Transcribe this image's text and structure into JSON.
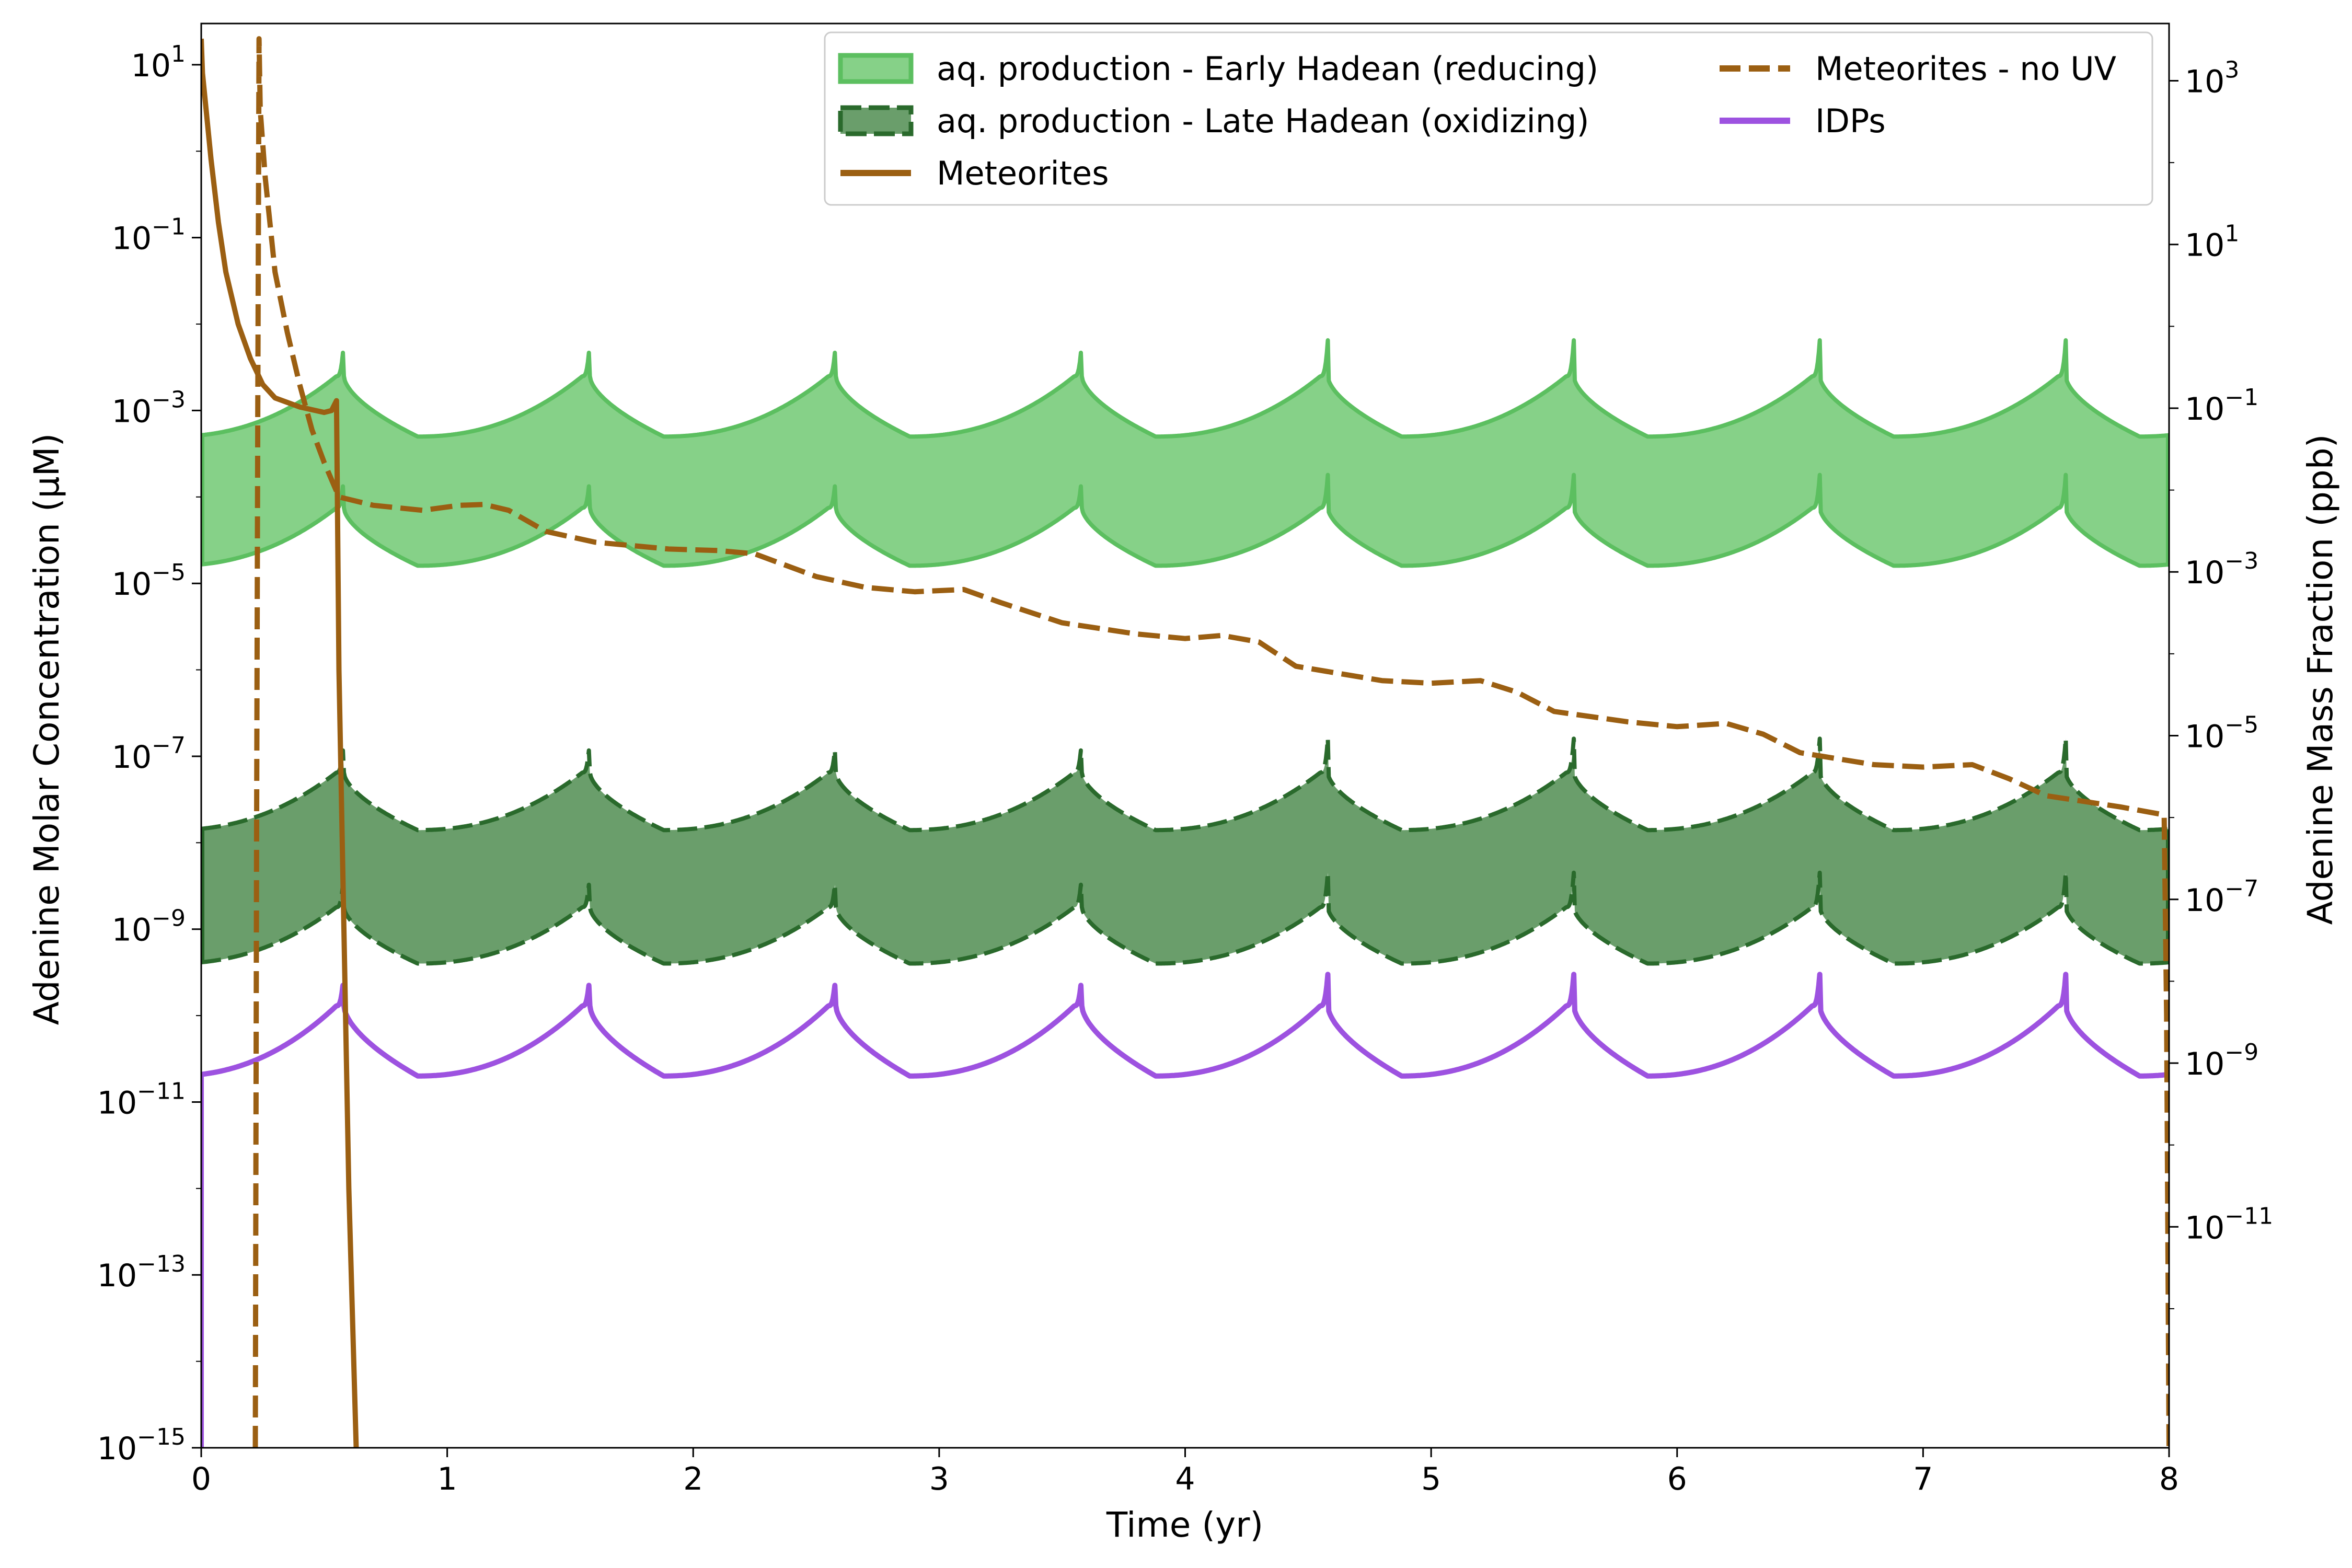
{
  "chart_data": {
    "type": "line",
    "xlabel": "Time (yr)",
    "ylabel": "Adenine Molar Concentration (μM)",
    "ylabel_right": "Adenine Mass Fraction (ppb)",
    "xlim": [
      0,
      8
    ],
    "ylim": [
      1e-15,
      30.0
    ],
    "yscale": "log",
    "ylim_right": [
      2e-14,
      5000.0
    ],
    "yscale_right": "log",
    "x_ticks": [
      "0",
      "1",
      "2",
      "3",
      "4",
      "5",
      "6",
      "7",
      "8"
    ],
    "y_ticks_left": [
      {
        "base": "10",
        "exp": "1"
      },
      {
        "base": "10",
        "exp": "−1"
      },
      {
        "base": "10",
        "exp": "−3"
      },
      {
        "base": "10",
        "exp": "−5"
      },
      {
        "base": "10",
        "exp": "−7"
      },
      {
        "base": "10",
        "exp": "−9"
      },
      {
        "base": "10",
        "exp": "−11"
      },
      {
        "base": "10",
        "exp": "−13"
      },
      {
        "base": "10",
        "exp": "−15"
      }
    ],
    "y_ticks_right": [
      {
        "base": "10",
        "exp": "3"
      },
      {
        "base": "10",
        "exp": "1"
      },
      {
        "base": "10",
        "exp": "−1"
      },
      {
        "base": "10",
        "exp": "−3"
      },
      {
        "base": "10",
        "exp": "−5"
      },
      {
        "base": "10",
        "exp": "−7"
      },
      {
        "base": "10",
        "exp": "−9"
      },
      {
        "base": "10",
        "exp": "−11"
      }
    ],
    "legend_position": "top-right",
    "series": [
      {
        "name": "aq. production - Early Hadean (reducing)",
        "kind": "band",
        "color": "#5cbf60",
        "fill": "#86d188",
        "lower": {
          "min": 1.6e-05,
          "max": 7.5e-05,
          "cusp": 0.00018
        },
        "upper": {
          "min": 0.0005,
          "max": 0.0025,
          "cusp": 0.0065
        }
      },
      {
        "name": "aq. production - Late Hadean (oxidizing)",
        "kind": "band",
        "color": "#2a6a2c",
        "fill": "#6a9e6b",
        "dashed": true,
        "lower": {
          "min": 4e-10,
          "max": 1.8e-09,
          "cusp": 4.5e-09
        },
        "upper": {
          "min": 1.4e-08,
          "max": 6.5e-08,
          "cusp": 1.6e-07
        }
      },
      {
        "name": "Meteorites",
        "kind": "line",
        "color": "#9b5f12",
        "points": [
          [
            0,
            20
          ],
          [
            0.005,
            8
          ],
          [
            0.02,
            3
          ],
          [
            0.04,
            0.8
          ],
          [
            0.07,
            0.15
          ],
          [
            0.1,
            0.04
          ],
          [
            0.15,
            0.01
          ],
          [
            0.2,
            0.004
          ],
          [
            0.25,
            0.002
          ],
          [
            0.3,
            0.0014
          ],
          [
            0.4,
            0.0011
          ],
          [
            0.5,
            0.00095
          ],
          [
            0.53,
            0.001
          ],
          [
            0.55,
            0.0013
          ],
          [
            0.56,
            1e-06
          ],
          [
            0.58,
            1e-09
          ],
          [
            0.6,
            1e-12
          ],
          [
            0.63,
            1e-15
          ]
        ]
      },
      {
        "name": "Meteorites - no UV",
        "kind": "line",
        "color": "#9b5f12",
        "dashed": true,
        "points": [
          [
            0.22,
            1e-15
          ],
          [
            0.225,
            1e-08
          ],
          [
            0.23,
            0.001
          ],
          [
            0.235,
            20
          ],
          [
            0.24,
            3
          ],
          [
            0.26,
            0.5
          ],
          [
            0.3,
            0.04
          ],
          [
            0.35,
            0.008
          ],
          [
            0.4,
            0.002
          ],
          [
            0.45,
            0.0006
          ],
          [
            0.5,
            0.00025
          ],
          [
            0.56,
            0.0001
          ],
          [
            0.7,
            8e-05
          ],
          [
            0.9,
            7e-05
          ],
          [
            1.05,
            8e-05
          ],
          [
            1.15,
            8.2e-05
          ],
          [
            1.25,
            7e-05
          ],
          [
            1.4,
            4e-05
          ],
          [
            1.6,
            3e-05
          ],
          [
            1.9,
            2.5e-05
          ],
          [
            2.1,
            2.4e-05
          ],
          [
            2.25,
            2.2e-05
          ],
          [
            2.5,
            1.2e-05
          ],
          [
            2.7,
            9e-06
          ],
          [
            2.9,
            8e-06
          ],
          [
            3.1,
            8.5e-06
          ],
          [
            3.25,
            6e-06
          ],
          [
            3.5,
            3.5e-06
          ],
          [
            3.8,
            2.6e-06
          ],
          [
            4.0,
            2.3e-06
          ],
          [
            4.15,
            2.5e-06
          ],
          [
            4.3,
            2.1e-06
          ],
          [
            4.45,
            1.1e-06
          ],
          [
            4.8,
            7.5e-07
          ],
          [
            5.0,
            7e-07
          ],
          [
            5.2,
            7.5e-07
          ],
          [
            5.35,
            5.5e-07
          ],
          [
            5.5,
            3.3e-07
          ],
          [
            5.8,
            2.5e-07
          ],
          [
            6.0,
            2.2e-07
          ],
          [
            6.2,
            2.4e-07
          ],
          [
            6.35,
            1.8e-07
          ],
          [
            6.5,
            1.1e-07
          ],
          [
            6.8,
            8e-08
          ],
          [
            7.0,
            7.5e-08
          ],
          [
            7.2,
            8e-08
          ],
          [
            7.35,
            5.5e-08
          ],
          [
            7.5,
            3.5e-08
          ],
          [
            7.8,
            2.6e-08
          ],
          [
            7.98,
            2.1e-08
          ],
          [
            7.99,
            1e-10
          ],
          [
            8.0,
            1e-15
          ]
        ]
      },
      {
        "name": "IDPs",
        "kind": "cyclic",
        "color": "#9d52e0",
        "profile": {
          "min": 2e-11,
          "max": 1.3e-10,
          "cusp": 3e-10
        }
      }
    ]
  }
}
